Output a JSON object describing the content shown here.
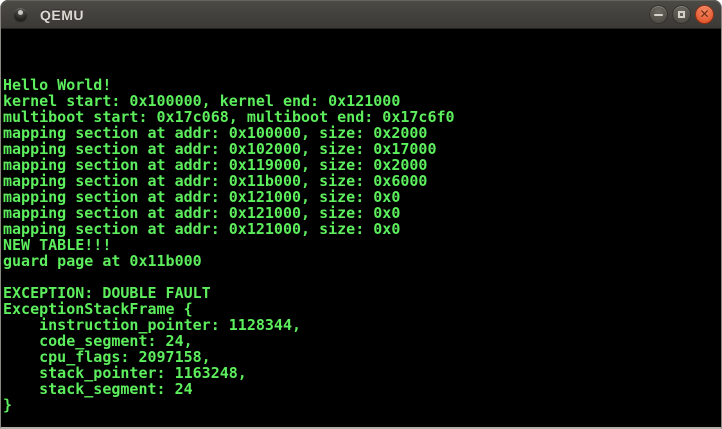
{
  "window": {
    "title": "QEMU",
    "controls": {
      "minimize_label": "minimize",
      "maximize_label": "maximize",
      "close_label": "close",
      "close_glyph": "✕"
    }
  },
  "colors": {
    "terminal_foreground": "#5dee5d",
    "terminal_background": "#000000",
    "titlebar": "#44423d",
    "close_button": "#e8633c"
  },
  "terminal": {
    "lines": [
      "",
      "",
      "",
      "Hello World!",
      "kernel start: 0x100000, kernel end: 0x121000",
      "multiboot start: 0x17c068, multiboot end: 0x17c6f0",
      "mapping section at addr: 0x100000, size: 0x2000",
      "mapping section at addr: 0x102000, size: 0x17000",
      "mapping section at addr: 0x119000, size: 0x2000",
      "mapping section at addr: 0x11b000, size: 0x6000",
      "mapping section at addr: 0x121000, size: 0x0",
      "mapping section at addr: 0x121000, size: 0x0",
      "mapping section at addr: 0x121000, size: 0x0",
      "NEW TABLE!!!",
      "guard page at 0x11b000",
      "",
      "EXCEPTION: DOUBLE FAULT",
      "ExceptionStackFrame {",
      "    instruction_pointer: 1128344,",
      "    code_segment: 24,",
      "    cpu_flags: 2097158,",
      "    stack_pointer: 1163248,",
      "    stack_segment: 24",
      "}"
    ]
  }
}
